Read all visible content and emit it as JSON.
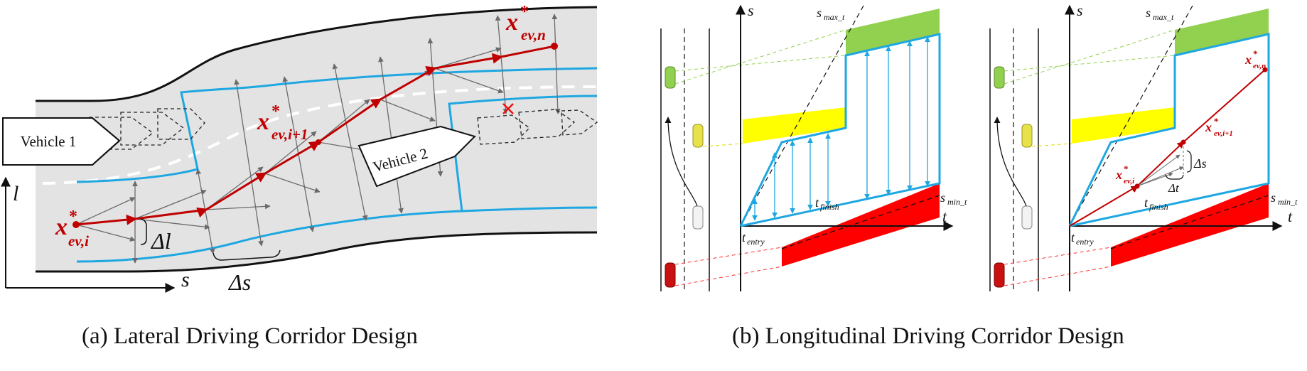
{
  "panel_a": {
    "vehicle1_label": "Vehicle 1",
    "vehicle2_label": "Vehicle 2",
    "axis_l": "l",
    "axis_s": "s",
    "x_start": "x",
    "x_start_sub": "ev,i",
    "x_mid": "x",
    "x_mid_sub": "ev,i+1",
    "x_end": "x",
    "x_end_sub": "ev,n",
    "star": "*",
    "delta_l": "Δl",
    "delta_s": "Δs",
    "caption": "(a) Lateral Driving Corridor Design"
  },
  "panel_b": {
    "axis_s": "s",
    "axis_t": "t",
    "s_max_main": "s",
    "s_max_sub": "max_t",
    "s_min_main": "s",
    "s_min_sub": "min_t",
    "t_entry_main": "t",
    "t_entry_sub": "entry",
    "t_finish_main": "t",
    "t_finish_sub": "finish",
    "x_i": "x",
    "x_i_sub": "ev,i",
    "x_i1": "x",
    "x_i1_sub": "ev,i+1",
    "x_n": "x",
    "x_n_sub": "ev,n",
    "star": "*",
    "delta_s": "Δs",
    "delta_t": "Δt",
    "caption": "(b) Longitudinal Driving Corridor Design"
  },
  "colors": {
    "road": "#e3e3e3",
    "corridor": "#1ea7e1",
    "trajectory": "#c00000",
    "green": "#92d050",
    "yellow": "#ffff00",
    "red": "#ff0000"
  }
}
